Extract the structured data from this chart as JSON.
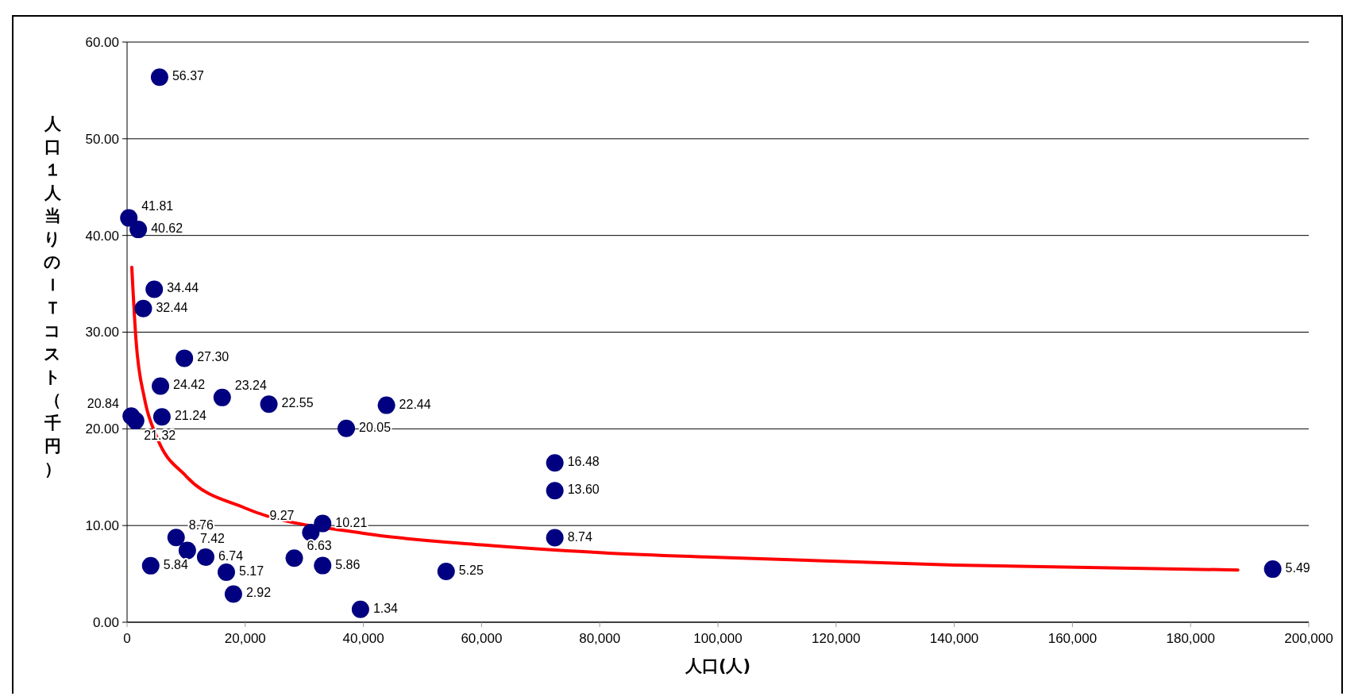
{
  "chart_data": {
    "type": "scatter",
    "xlabel": "人口(人)",
    "ylabel": "人口１人当りのＩＴコスト（千円）",
    "xlim": [
      0,
      200000
    ],
    "ylim": [
      0,
      60
    ],
    "xticks": [
      0,
      {
        "value": 20000,
        "label": "20,000"
      },
      {
        "value": 40000,
        "label": "40,000"
      },
      {
        "value": 60000,
        "label": "60,000"
      },
      {
        "value": 80000,
        "label": "80,000"
      },
      {
        "value": 100000,
        "label": "100,000"
      },
      {
        "value": 120000,
        "label": "120,000"
      },
      {
        "value": 140000,
        "label": "140,000"
      },
      {
        "value": 160000,
        "label": "160,000"
      },
      {
        "value": 180000,
        "label": "180,000"
      },
      {
        "value": 200000,
        "label": "200,000"
      }
    ],
    "yticks": [
      {
        "value": 0,
        "label": "0.00"
      },
      {
        "value": 10,
        "label": "10.00"
      },
      {
        "value": 20,
        "label": "20.00"
      },
      {
        "value": 30,
        "label": "30.00"
      },
      {
        "value": 40,
        "label": "40.00"
      },
      {
        "value": 50,
        "label": "50.00"
      },
      {
        "value": 60,
        "label": "60.00"
      }
    ],
    "grid": "y",
    "marker": "circle",
    "series": [
      {
        "color": "#000080",
        "x": [
          5500,
          300,
          1900,
          4600,
          2750,
          9700,
          5650,
          16100,
          24000,
          43900,
          37100,
          72400,
          72400,
          72400,
          193900,
          700,
          1450,
          5900,
          8300,
          10200,
          13300,
          4000,
          16800,
          18000,
          28300,
          31100,
          33100,
          33100,
          39500,
          54000
        ],
        "values": [
          56.37,
          41.81,
          40.62,
          34.44,
          32.44,
          27.3,
          24.42,
          23.24,
          22.55,
          22.44,
          20.05,
          16.48,
          13.6,
          8.74,
          5.49,
          21.32,
          20.84,
          21.24,
          8.76,
          7.42,
          6.74,
          5.84,
          5.17,
          2.92,
          6.63,
          9.27,
          10.21,
          5.86,
          1.34,
          5.25
        ],
        "value_labels": [
          "56.37",
          "41.81",
          "40.62",
          "34.44",
          "32.44",
          "27.30",
          "24.42",
          "23.24",
          "22.55",
          "22.44",
          "20.05",
          "16.48",
          "13.60",
          "8.74",
          "5.49",
          "21.32",
          "20.84",
          "21.24",
          "8.76",
          "7.42",
          "6.74",
          "5.84",
          "5.17",
          "2.92",
          "6.63",
          "9.27",
          "10.21",
          "5.86",
          "1.34",
          "5.25"
        ]
      },
      {
        "type": "line",
        "color": "#ff0000",
        "line_style": "solid",
        "marker": "none",
        "x": [
          800,
          1500,
          3000,
          5000,
          10000,
          20000,
          40000,
          60000,
          80000,
          100000,
          140000,
          188000
        ],
        "values": [
          36.7,
          29.3,
          23.0,
          19.2,
          15.1,
          11.8,
          9.2,
          8.0,
          7.2,
          6.7,
          5.9,
          5.4
        ]
      }
    ]
  }
}
